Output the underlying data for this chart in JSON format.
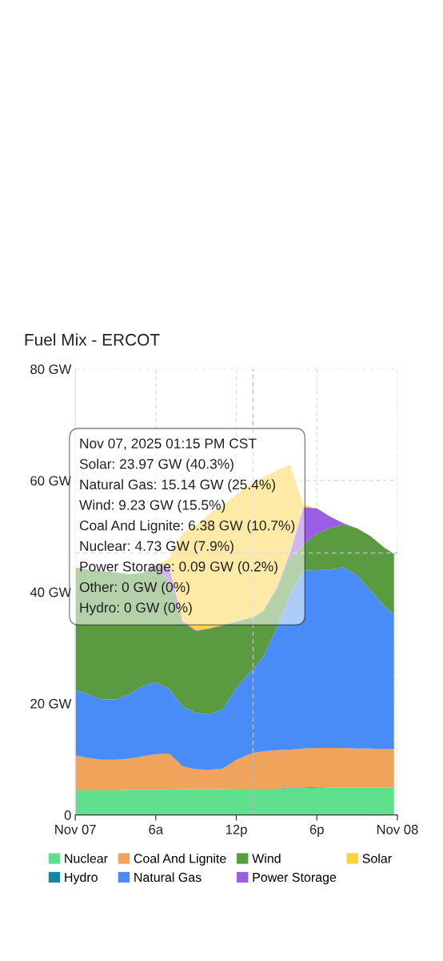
{
  "chart_data": {
    "type": "area",
    "stacked": true,
    "title": "Fuel Mix - ERCOT",
    "x": [
      "2025-11-07T00:00",
      "2025-11-07T01:00",
      "2025-11-07T02:00",
      "2025-11-07T03:00",
      "2025-11-07T04:00",
      "2025-11-07T05:00",
      "2025-11-07T06:00",
      "2025-11-07T07:00",
      "2025-11-07T08:00",
      "2025-11-07T09:00",
      "2025-11-07T10:00",
      "2025-11-07T11:00",
      "2025-11-07T12:00",
      "2025-11-07T13:00",
      "2025-11-07T13:15",
      "2025-11-07T14:00",
      "2025-11-07T15:00",
      "2025-11-07T16:00",
      "2025-11-07T17:00",
      "2025-11-07T18:00",
      "2025-11-07T19:00",
      "2025-11-07T20:00",
      "2025-11-07T21:00",
      "2025-11-07T22:00",
      "2025-11-07T23:00",
      "2025-11-07T23:45"
    ],
    "xlim": [
      "2025-11-07T00:00",
      "2025-11-08T00:00"
    ],
    "xticks": [
      {
        "value": "2025-11-07T00:00",
        "label": "Nov 07"
      },
      {
        "value": "2025-11-07T06:00",
        "label": "6a"
      },
      {
        "value": "2025-11-07T12:00",
        "label": "12p"
      },
      {
        "value": "2025-11-07T18:00",
        "label": "6p"
      },
      {
        "value": "2025-11-08T00:00",
        "label": "Nov 08"
      }
    ],
    "ylim": [
      0,
      80
    ],
    "yticks": [
      {
        "value": 0,
        "label": "0"
      },
      {
        "value": 20,
        "label": "20 GW"
      },
      {
        "value": 40,
        "label": "40 GW"
      },
      {
        "value": 60,
        "label": "60 GW"
      },
      {
        "value": 80,
        "label": "80 GW"
      }
    ],
    "grid": true,
    "legend": "bottom",
    "series": [
      {
        "name": "Nuclear",
        "color": "#5fe08c",
        "values": [
          4.4,
          4.4,
          4.4,
          4.4,
          4.5,
          4.5,
          4.5,
          4.5,
          4.6,
          4.6,
          4.6,
          4.6,
          4.7,
          4.7,
          4.7,
          4.7,
          4.7,
          4.8,
          4.8,
          4.9,
          4.9,
          4.9,
          4.9,
          4.9,
          4.9,
          4.9
        ]
      },
      {
        "name": "Hydro",
        "color": "#1585a8",
        "values": [
          0,
          0,
          0,
          0,
          0,
          0,
          0,
          0,
          0,
          0,
          0,
          0,
          0,
          0,
          0,
          0,
          0,
          0.1,
          0.1,
          0.1,
          0,
          0,
          0,
          0,
          0,
          0
        ]
      },
      {
        "name": "Coal And Lignite",
        "color": "#f0a35a",
        "values": [
          6.3,
          5.8,
          5.5,
          5.5,
          5.6,
          6.0,
          6.4,
          6.5,
          4.1,
          3.6,
          3.5,
          3.7,
          5.2,
          6.2,
          6.4,
          6.7,
          6.9,
          6.8,
          7.0,
          7.0,
          7.1,
          7.1,
          7.0,
          7.0,
          6.9,
          6.9
        ]
      },
      {
        "name": "Natural Gas",
        "color": "#4a8cf7",
        "values": [
          11.7,
          11.4,
          10.8,
          10.8,
          11.5,
          12.6,
          12.9,
          11.6,
          10.8,
          10.1,
          9.9,
          10.7,
          12.9,
          14.7,
          15.1,
          17.0,
          21.9,
          27.8,
          31.9,
          31.9,
          32.0,
          32.4,
          31.1,
          28.4,
          25.7,
          24.2
        ]
      },
      {
        "name": "Wind",
        "color": "#5a9a40",
        "values": [
          22.0,
          22.4,
          23.0,
          22.8,
          21.6,
          20.3,
          20.4,
          19.4,
          15.0,
          14.7,
          15.4,
          15.0,
          11.8,
          9.7,
          9.2,
          8.1,
          7.0,
          6.5,
          4.7,
          6.6,
          7.5,
          7.7,
          8.4,
          9.7,
          10.5,
          10.8
        ]
      },
      {
        "name": "Power Storage",
        "color": "#9b5de5",
        "values": [
          0,
          0,
          0,
          0,
          0,
          0,
          0.6,
          2.5,
          0.3,
          0.1,
          0.1,
          0.1,
          0.1,
          0.1,
          0.1,
          0.1,
          0.2,
          1.0,
          6.7,
          4.5,
          2.0,
          0.2,
          0,
          0,
          0,
          0
        ]
      },
      {
        "name": "Solar",
        "color": "#fbd23a",
        "values": [
          0,
          0,
          0,
          0,
          0,
          0,
          0,
          1.5,
          15.7,
          18.9,
          20.5,
          21.4,
          22.8,
          23.8,
          24.0,
          23.9,
          21.1,
          15.8,
          0.4,
          0,
          0,
          0,
          0,
          0,
          0,
          0
        ]
      }
    ],
    "ref_lines": [
      {
        "axis": "x",
        "value": "2025-11-07T13:15",
        "color": "#bbbbbb",
        "line_style": "dashed"
      },
      {
        "axis": "y",
        "value": 47,
        "color": "#bbbbbb",
        "line_style": "dashed"
      }
    ],
    "annotations": [
      "Nov 07, 2025 01:15 PM CST",
      "Solar: 23.97 GW (40.3%)",
      "Natural Gas: 15.14 GW (25.4%)",
      "Wind: 9.23 GW (15.5%)",
      "Coal And Lignite: 6.38 GW (10.7%)",
      "Nuclear: 4.73 GW (7.9%)",
      "Power Storage: 0.09 GW (0.2%)",
      "Other: 0 GW (0%)",
      "Hydro: 0 GW (0%)"
    ]
  }
}
